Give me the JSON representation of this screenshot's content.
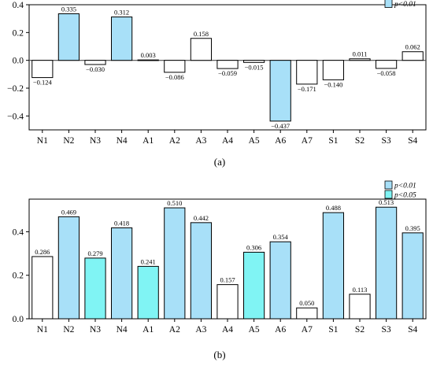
{
  "chart_data": [
    {
      "type": "bar",
      "panel_label": "(a)",
      "categories": [
        "N1",
        "N2",
        "N3",
        "N4",
        "A1",
        "A2",
        "A3",
        "A4",
        "A5",
        "A6",
        "A7",
        "S1",
        "S2",
        "S3",
        "S4"
      ],
      "values": [
        -0.124,
        0.335,
        -0.03,
        0.312,
        0.003,
        -0.086,
        0.158,
        -0.059,
        -0.015,
        -0.437,
        -0.171,
        -0.14,
        0.011,
        -0.058,
        0.062
      ],
      "value_labels": [
        "−0.124",
        "0.335",
        "−0.030",
        "0.312",
        "0.003",
        "−0.086",
        "0.158",
        "−0.059",
        "−0.015",
        "−0.437",
        "−0.171",
        "−0.140",
        "0.011",
        "−0.058",
        "0.062"
      ],
      "significance": [
        "none",
        "p01",
        "none",
        "p01",
        "none",
        "none",
        "none",
        "none",
        "none",
        "p01",
        "none",
        "none",
        "none",
        "none",
        "none"
      ],
      "ylim": [
        -0.5,
        0.4
      ],
      "yticks": [
        -0.4,
        -0.2,
        0.0,
        0.2,
        0.4
      ],
      "ytick_labels": [
        "−0.4",
        "−0.2",
        "0.0",
        "0.2",
        "0.4"
      ],
      "legend": [
        {
          "key": "p01",
          "label": "p<0.01"
        }
      ],
      "legend_position": "top-right"
    },
    {
      "type": "bar",
      "panel_label": "(b)",
      "categories": [
        "N1",
        "N2",
        "N3",
        "N4",
        "A1",
        "A2",
        "A3",
        "A4",
        "A5",
        "A6",
        "A7",
        "S1",
        "S2",
        "S3",
        "S4"
      ],
      "values": [
        0.286,
        0.469,
        0.279,
        0.418,
        0.241,
        0.51,
        0.442,
        0.157,
        0.306,
        0.354,
        0.05,
        0.488,
        0.113,
        0.513,
        0.395
      ],
      "value_labels": [
        "0.286",
        "0.469",
        "0.279",
        "0.418",
        "0.241",
        "0.510",
        "0.442",
        "0.157",
        "0.306",
        "0.354",
        "0.050",
        "0.488",
        "0.113",
        "0.513",
        "0.395"
      ],
      "significance": [
        "none",
        "p01",
        "p05",
        "p01",
        "p05",
        "p01",
        "p01",
        "none",
        "p05",
        "p01",
        "none",
        "p01",
        "none",
        "p01",
        "p01"
      ],
      "ylim": [
        0.0,
        0.55
      ],
      "yticks": [
        0.0,
        0.2,
        0.4
      ],
      "ytick_labels": [
        "0.0",
        "0.2",
        "0.4"
      ],
      "legend": [
        {
          "key": "p01",
          "label": "p<0.01"
        },
        {
          "key": "p05",
          "label": "p<0.05"
        }
      ],
      "legend_position": "top-right"
    }
  ],
  "colors": {
    "p01": "#a8e0f8",
    "p05": "#80f4f4",
    "none": "#ffffff",
    "stroke": "#000000",
    "zero_line": "#4a4a4a"
  }
}
